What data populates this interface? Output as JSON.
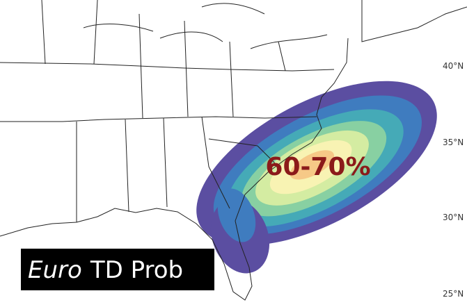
{
  "map": {
    "lat_labels": [
      "40°N",
      "35°N",
      "30°N",
      "25°N"
    ],
    "annotation": "60-70%",
    "caption": {
      "model": "Euro",
      "product": "TD Prob"
    }
  }
}
